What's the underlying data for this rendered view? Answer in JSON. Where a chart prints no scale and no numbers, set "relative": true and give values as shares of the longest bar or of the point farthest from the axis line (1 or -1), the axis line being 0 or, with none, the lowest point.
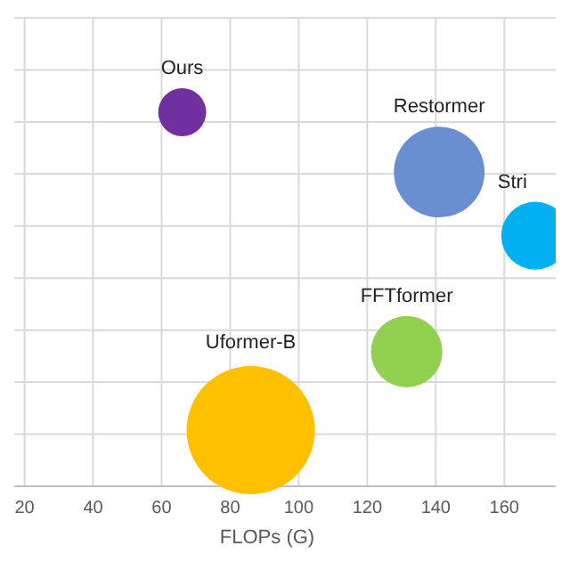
{
  "chart_data": {
    "type": "bubble",
    "xlabel": "FLOPs (G)",
    "relative": true,
    "grid": true,
    "xlim": [
      17,
      175
    ],
    "xticks": [
      20,
      40,
      60,
      80,
      100,
      120,
      140,
      160
    ],
    "x": [
      66,
      141,
      169,
      131.5,
      86
    ],
    "values": [
      1,
      0.84,
      0.67,
      0.36,
      0.15
    ],
    "sizes": [
      0.14,
      0.5,
      0.28,
      0.31,
      1
    ],
    "colors": [
      "#7030a0",
      "#6a8fd0",
      "#00b0f0",
      "#92d050",
      "#ffc000"
    ],
    "annotations": [
      {
        "text": "Ours",
        "x": 66,
        "y": 1
      },
      {
        "text": "Restormer",
        "x": 141,
        "y": 0.84
      },
      {
        "text": "Stri",
        "x": 169,
        "y": 0.67
      },
      {
        "text": "FFTformer",
        "x": 131.5,
        "y": 0.36
      },
      {
        "text": "Uformer-B",
        "x": 86,
        "y": 0.33
      }
    ],
    "legend": false
  }
}
